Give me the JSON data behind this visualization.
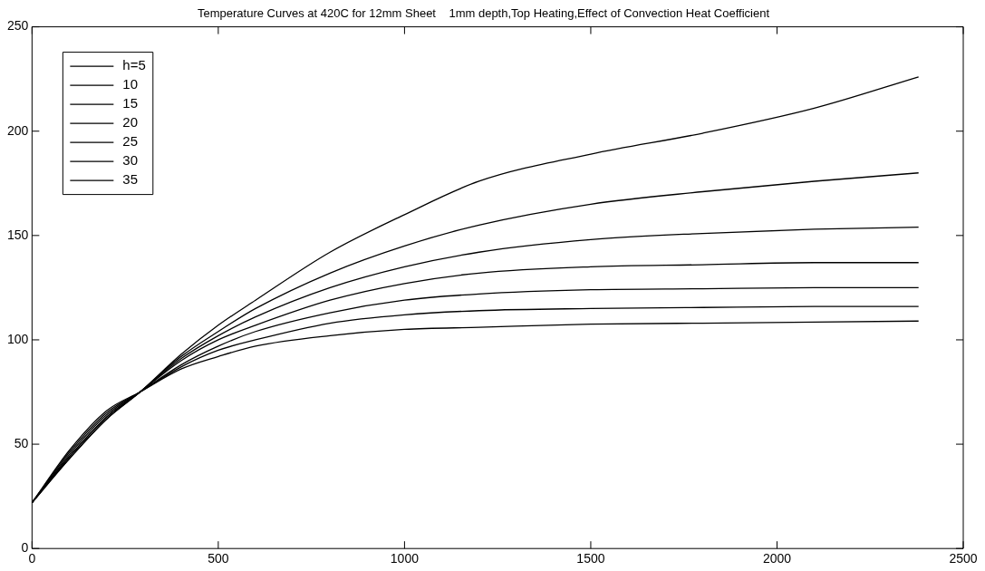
{
  "chart_data": {
    "type": "line",
    "title": "Temperature Curves at 420C for 12mm Sheet    1mm depth,Top Heating,Effect of Convection Heat Coefficient",
    "x": [
      0,
      100,
      200,
      290,
      400,
      500,
      600,
      800,
      1000,
      1200,
      1500,
      1800,
      2100,
      2380
    ],
    "series": [
      {
        "name": "h=5",
        "color": "#000000",
        "values": [
          22,
          43,
          62,
          75,
          93,
          107,
          119,
          142,
          160,
          176,
          189,
          199,
          211,
          226
        ]
      },
      {
        "name": "10",
        "color": "#000000",
        "values": [
          22,
          43,
          62,
          75,
          92,
          104,
          115,
          132,
          145,
          155,
          165,
          171,
          176,
          180
        ]
      },
      {
        "name": "15",
        "color": "#000000",
        "values": [
          22,
          44,
          63,
          75,
          91,
          102,
          111,
          125,
          135,
          142,
          148,
          151,
          153,
          154
        ]
      },
      {
        "name": "20",
        "color": "#000000",
        "values": [
          22,
          44,
          63,
          75,
          90,
          100,
          107,
          119,
          127,
          132,
          135,
          136,
          137,
          137
        ]
      },
      {
        "name": "25",
        "color": "#000000",
        "values": [
          22,
          45,
          64,
          75,
          88,
          97,
          104,
          113,
          119,
          122,
          124,
          124.5,
          125,
          125
        ]
      },
      {
        "name": "30",
        "color": "#000000",
        "values": [
          22,
          46,
          65,
          75,
          87,
          95,
          100,
          108,
          112,
          114,
          115,
          115.5,
          116,
          116
        ]
      },
      {
        "name": "35",
        "color": "#000000",
        "values": [
          22,
          47,
          66,
          75,
          86,
          92,
          97,
          102,
          105,
          106,
          107.5,
          108,
          108.5,
          109
        ]
      }
    ],
    "xlim": [
      0,
      2500
    ],
    "xticks": [
      0,
      500,
      1000,
      1500,
      2000,
      2500
    ],
    "ylim": [
      0,
      250
    ],
    "yticks": [
      0,
      50,
      100,
      150,
      200,
      250
    ],
    "grid": false,
    "legend": "top left",
    "marker": "none",
    "line_style": "solid"
  }
}
